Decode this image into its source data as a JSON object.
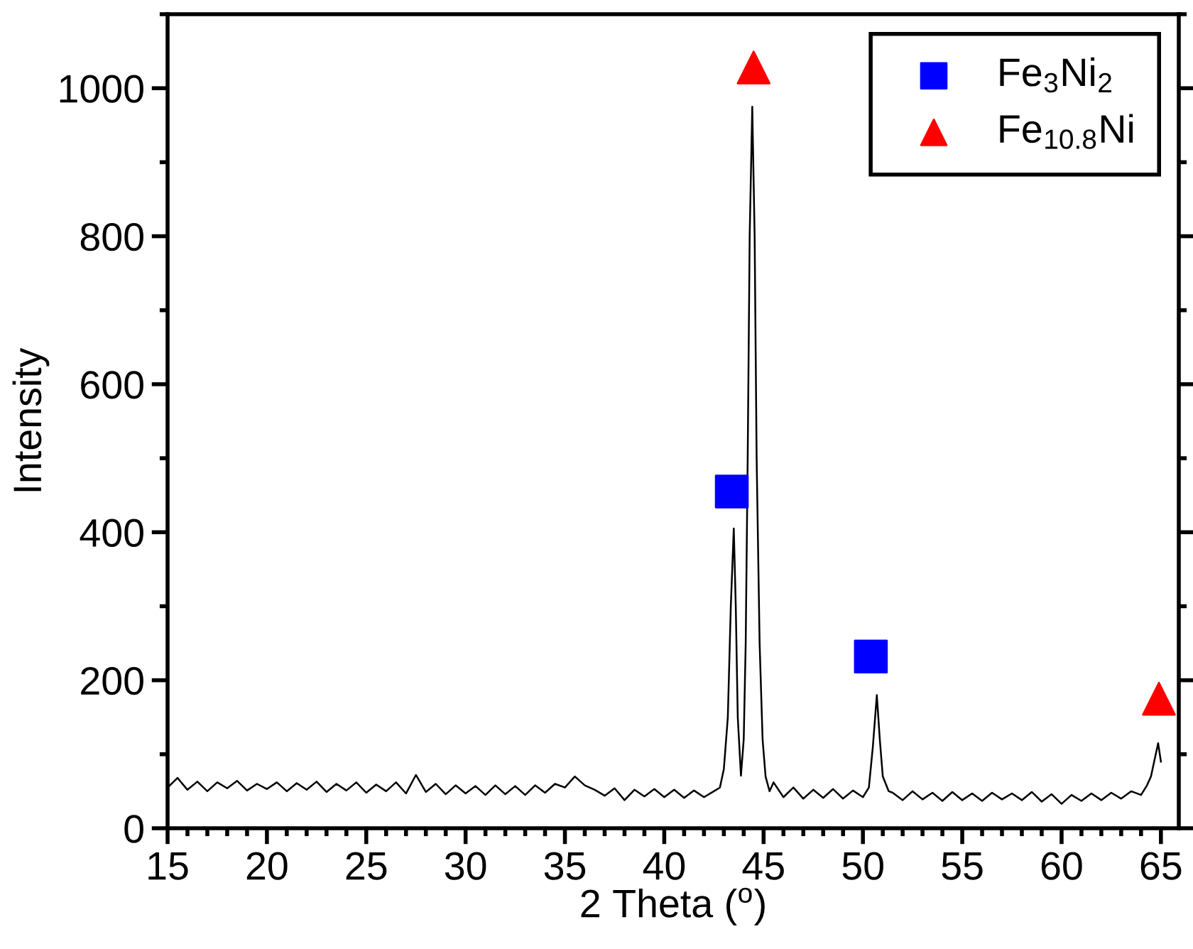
{
  "chart_data": {
    "type": "line",
    "xlabel": "2 Theta ($^{o}$)",
    "ylabel": "Intensity",
    "xlim": [
      15,
      65.9
    ],
    "ylim": [
      0,
      1100
    ],
    "xticks": [
      15,
      20,
      25,
      30,
      35,
      40,
      45,
      50,
      55,
      60,
      65
    ],
    "yticks": [
      0,
      200,
      400,
      600,
      800,
      1000
    ],
    "grid": false,
    "legend": "top right",
    "series": [
      {
        "color": "#000000",
        "marker": "none",
        "x": [
          15,
          15.5,
          16,
          16.5,
          17,
          17.5,
          18,
          18.5,
          19,
          19.5,
          20,
          20.5,
          21,
          21.5,
          22,
          22.5,
          23,
          23.5,
          24,
          24.5,
          25,
          25.5,
          26,
          26.5,
          27,
          27.5,
          28,
          28.5,
          29,
          29.5,
          30,
          30.5,
          31,
          31.5,
          32,
          32.5,
          33,
          33.5,
          34,
          34.5,
          35,
          35.5,
          36,
          36.5,
          37,
          37.5,
          38,
          38.5,
          39,
          39.5,
          40,
          40.5,
          41,
          41.5,
          42,
          42.5,
          42.8,
          43.0,
          43.2,
          43.35,
          43.5,
          43.6,
          43.7,
          43.86,
          44.0,
          44.1,
          44.2,
          44.3,
          44.43,
          44.55,
          44.65,
          44.8,
          44.95,
          45.1,
          45.3,
          45.5,
          46,
          46.5,
          47,
          47.5,
          48,
          48.5,
          49,
          49.5,
          50,
          50.3,
          50.5,
          50.7,
          50.85,
          51.0,
          51.3,
          51.5,
          52,
          52.5,
          53,
          53.5,
          54,
          54.5,
          55,
          55.5,
          56,
          56.5,
          57,
          57.5,
          58,
          58.5,
          59,
          59.5,
          60,
          60.5,
          61,
          61.5,
          62,
          62.5,
          63,
          63.5,
          64,
          64.3,
          64.5,
          64.7,
          64.86,
          65.0
        ],
        "values": [
          55,
          68,
          52,
          63,
          50,
          62,
          54,
          64,
          51,
          60,
          53,
          62,
          50,
          61,
          52,
          63,
          49,
          60,
          51,
          62,
          48,
          59,
          50,
          62,
          47,
          72,
          49,
          60,
          46,
          58,
          47,
          57,
          45,
          58,
          46,
          57,
          45,
          58,
          48,
          60,
          55,
          70,
          58,
          52,
          44,
          54,
          38,
          52,
          43,
          53,
          42,
          52,
          41,
          51,
          42,
          50,
          55,
          80,
          150,
          300,
          405,
          300,
          150,
          71,
          120,
          250,
          500,
          800,
          975,
          800,
          500,
          250,
          120,
          70,
          50,
          62,
          42,
          55,
          40,
          52,
          41,
          53,
          40,
          51,
          42,
          55,
          110,
          180,
          120,
          70,
          50,
          48,
          38,
          50,
          39,
          48,
          37,
          49,
          38,
          47,
          37,
          48,
          39,
          47,
          38,
          49,
          36,
          46,
          33,
          45,
          37,
          47,
          38,
          48,
          40,
          50,
          45,
          58,
          70,
          95,
          115,
          90
        ]
      },
      {
        "type": "scatter",
        "name": "Fe$_{3}$Ni$_{2}$",
        "color": "#0000ff",
        "marker": "square",
        "x": [
          43.4,
          50.4
        ],
        "values": [
          455,
          232
        ]
      },
      {
        "type": "scatter",
        "name": "Fe$_{10.8}$Ni",
        "color": "#ff0000",
        "marker": "triangle",
        "x": [
          44.5,
          64.9
        ],
        "values": [
          1028,
          175
        ]
      }
    ]
  }
}
